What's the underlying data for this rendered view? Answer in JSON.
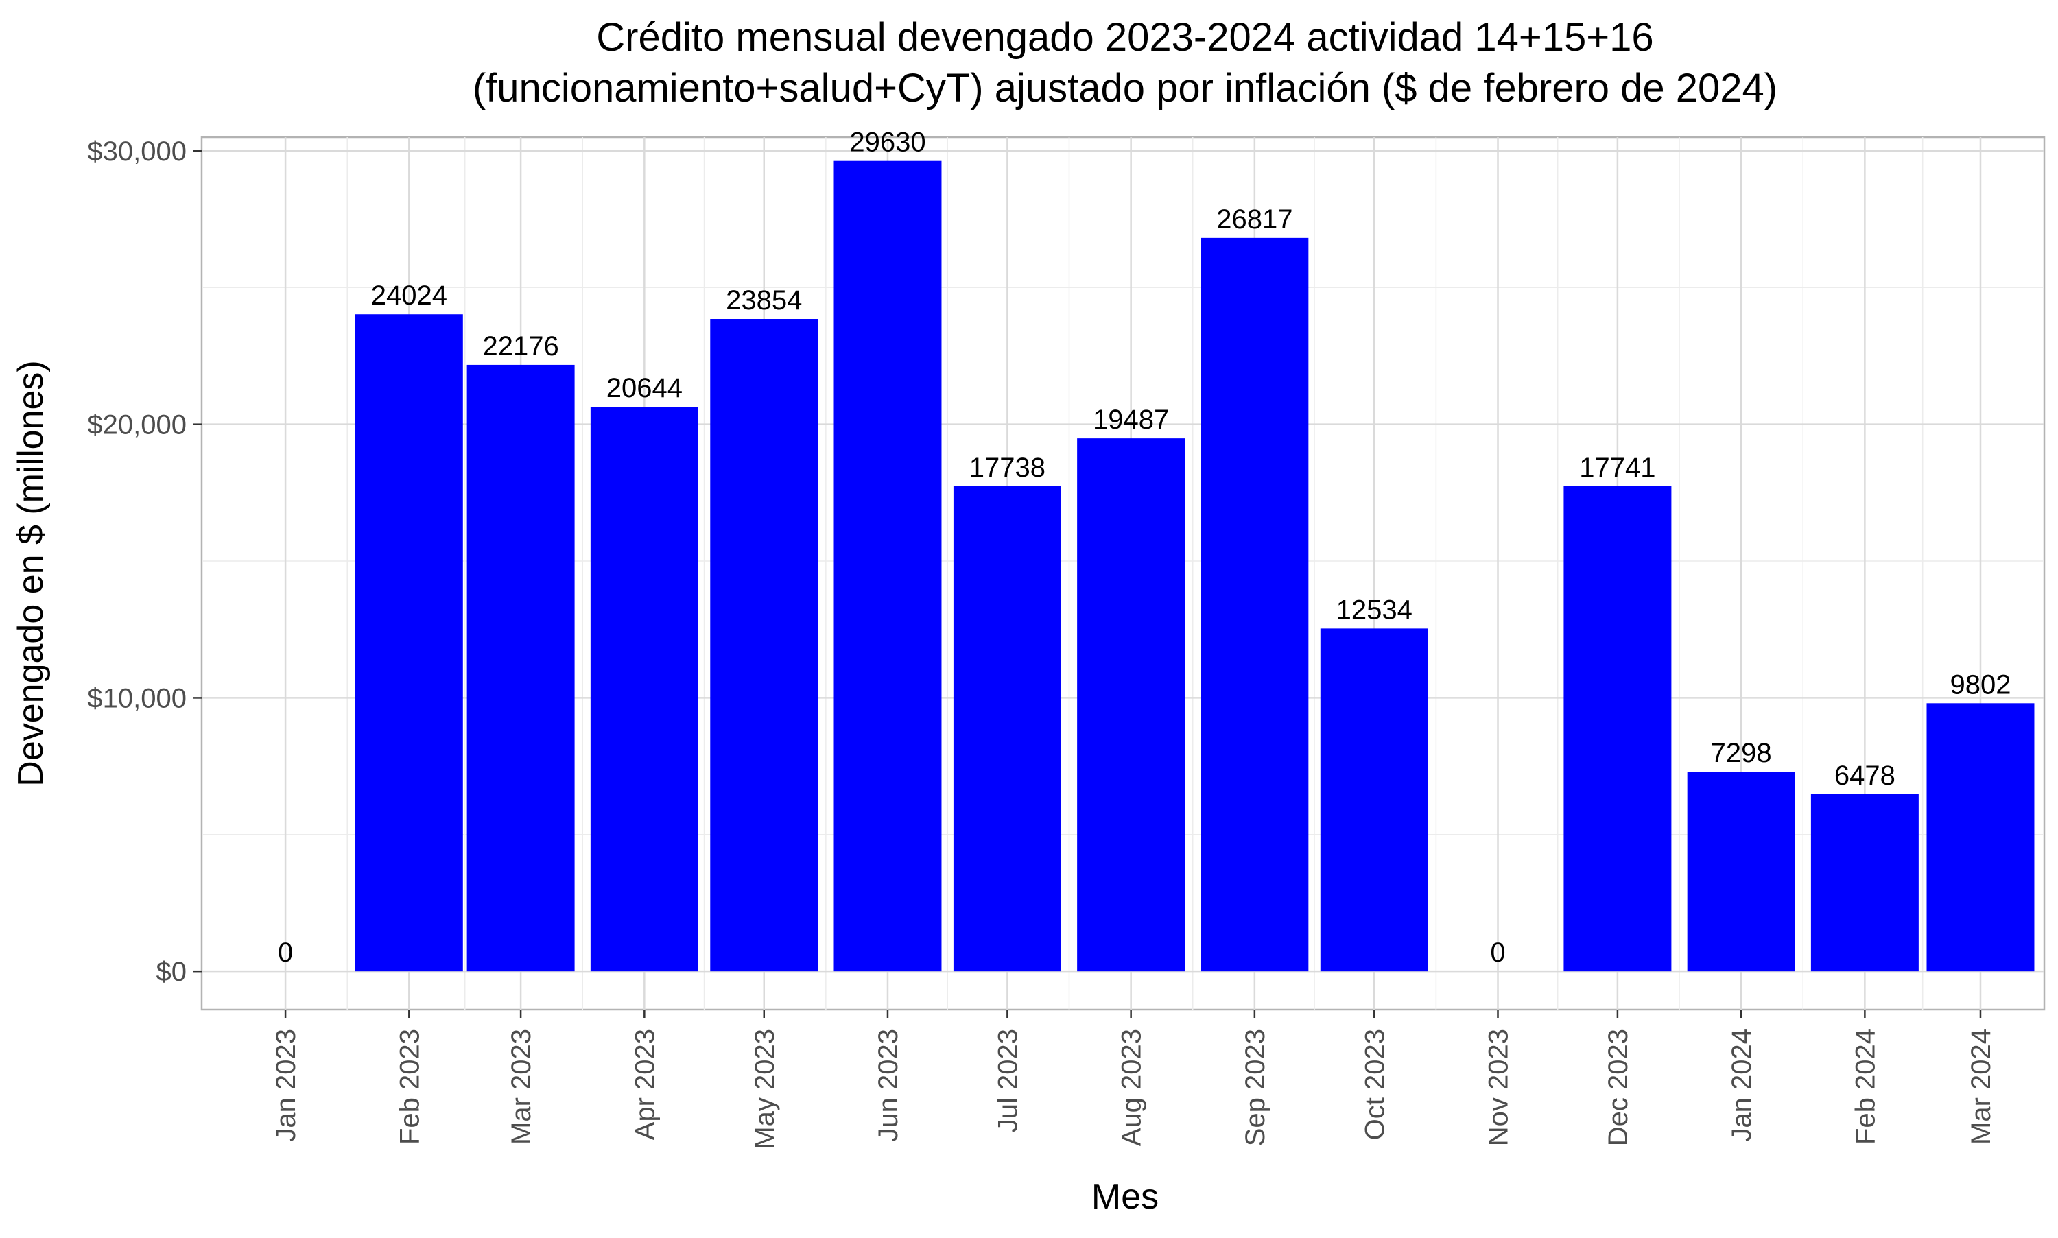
{
  "chart_data": {
    "type": "bar",
    "title_line1": "Crédito mensual devengado 2023-2024 actividad 14+15+16",
    "title_line2": "(funcionamiento+salud+CyT) ajustado por inflación ($ de febrero de 2024)",
    "xlabel": "Mes",
    "ylabel": "Devengado en $ (millones)",
    "ylim": [
      -1400,
      30500
    ],
    "yticks": [
      0,
      10000,
      20000,
      30000
    ],
    "ytick_labels": [
      "$0",
      "$10,000",
      "$20,000",
      "$30,000"
    ],
    "y_minor_ticks": [
      5000,
      15000,
      25000
    ],
    "x_start": "2022-12-25",
    "x_end": "2024-03-31",
    "grid": true,
    "legend": "none",
    "bar_color": "#0000ff",
    "bars": [
      {
        "label": "Jan 2023",
        "date": "2023-01-15",
        "value": 0,
        "value_label": "0"
      },
      {
        "label": "Feb 2023",
        "date": "2023-02-15",
        "value": 24024,
        "value_label": "24024"
      },
      {
        "label": "Mar 2023",
        "date": "2023-03-15",
        "value": 22176,
        "value_label": "22176"
      },
      {
        "label": "Apr 2023",
        "date": "2023-04-15",
        "value": 20644,
        "value_label": "20644"
      },
      {
        "label": "May 2023",
        "date": "2023-05-15",
        "value": 23854,
        "value_label": "23854"
      },
      {
        "label": "Jun 2023",
        "date": "2023-06-15",
        "value": 29630,
        "value_label": "29630"
      },
      {
        "label": "Jul 2023",
        "date": "2023-07-15",
        "value": 17738,
        "value_label": "17738"
      },
      {
        "label": "Aug 2023",
        "date": "2023-08-15",
        "value": 19487,
        "value_label": "19487"
      },
      {
        "label": "Sep 2023",
        "date": "2023-09-15",
        "value": 26817,
        "value_label": "26817"
      },
      {
        "label": "Oct 2023",
        "date": "2023-10-15",
        "value": 12534,
        "value_label": "12534"
      },
      {
        "label": "Nov 2023",
        "date": "2023-11-15",
        "value": 0,
        "value_label": "0"
      },
      {
        "label": "Dec 2023",
        "date": "2023-12-15",
        "value": 17741,
        "value_label": "17741"
      },
      {
        "label": "Jan 2024",
        "date": "2024-01-15",
        "value": 7298,
        "value_label": "7298"
      },
      {
        "label": "Feb 2024",
        "date": "2024-02-15",
        "value": 6478,
        "value_label": "6478"
      },
      {
        "label": "Mar 2024",
        "date": "2024-03-15",
        "value": 9802,
        "value_label": "9802"
      }
    ]
  }
}
